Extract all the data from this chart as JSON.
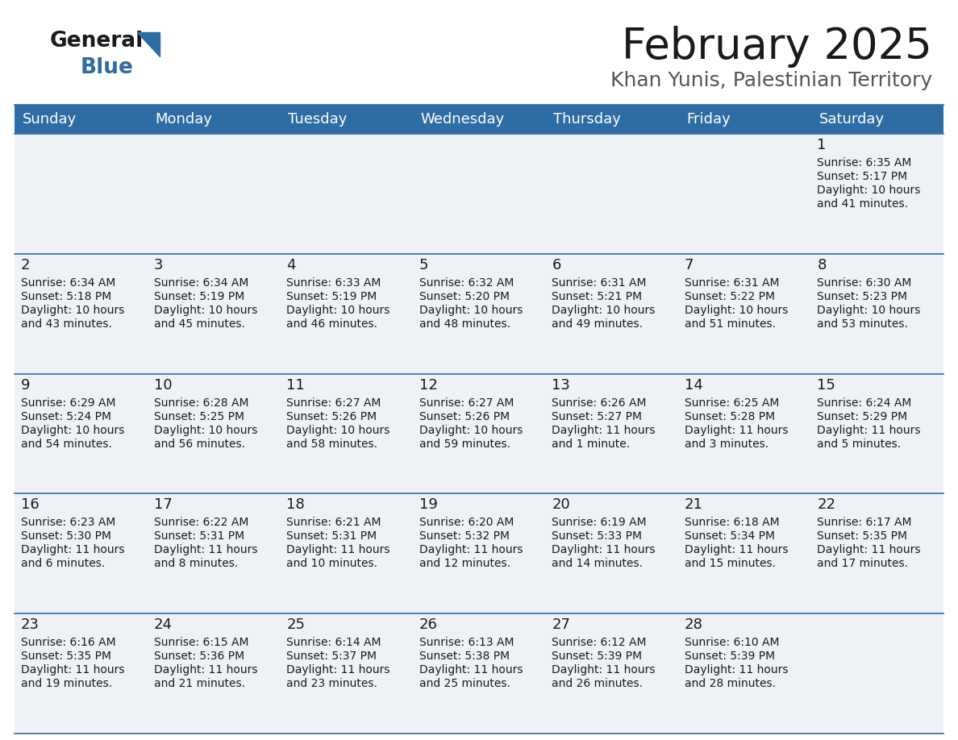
{
  "title": "February 2025",
  "subtitle": "Khan Yunis, Palestinian Territory",
  "header_color": "#2E6DA4",
  "header_text_color": "#FFFFFF",
  "cell_bg": "#EEF2F7",
  "border_color": "#2E6DA4",
  "text_color": "#1a1a1a",
  "day_headers": [
    "Sunday",
    "Monday",
    "Tuesday",
    "Wednesday",
    "Thursday",
    "Friday",
    "Saturday"
  ],
  "logo_color1": "#1a1a1a",
  "logo_color2": "#2E6DA4",
  "title_fontsize": 38,
  "subtitle_fontsize": 18,
  "header_fontsize": 13,
  "day_num_fontsize": 13,
  "cell_fontsize": 10,
  "calendar_data": [
    [
      {
        "day": "",
        "sunrise": "",
        "sunset": "",
        "daylight": ""
      },
      {
        "day": "",
        "sunrise": "",
        "sunset": "",
        "daylight": ""
      },
      {
        "day": "",
        "sunrise": "",
        "sunset": "",
        "daylight": ""
      },
      {
        "day": "",
        "sunrise": "",
        "sunset": "",
        "daylight": ""
      },
      {
        "day": "",
        "sunrise": "",
        "sunset": "",
        "daylight": ""
      },
      {
        "day": "",
        "sunrise": "",
        "sunset": "",
        "daylight": ""
      },
      {
        "day": "1",
        "sunrise": "6:35 AM",
        "sunset": "5:17 PM",
        "daylight": "10 hours\nand 41 minutes."
      }
    ],
    [
      {
        "day": "2",
        "sunrise": "6:34 AM",
        "sunset": "5:18 PM",
        "daylight": "10 hours\nand 43 minutes."
      },
      {
        "day": "3",
        "sunrise": "6:34 AM",
        "sunset": "5:19 PM",
        "daylight": "10 hours\nand 45 minutes."
      },
      {
        "day": "4",
        "sunrise": "6:33 AM",
        "sunset": "5:19 PM",
        "daylight": "10 hours\nand 46 minutes."
      },
      {
        "day": "5",
        "sunrise": "6:32 AM",
        "sunset": "5:20 PM",
        "daylight": "10 hours\nand 48 minutes."
      },
      {
        "day": "6",
        "sunrise": "6:31 AM",
        "sunset": "5:21 PM",
        "daylight": "10 hours\nand 49 minutes."
      },
      {
        "day": "7",
        "sunrise": "6:31 AM",
        "sunset": "5:22 PM",
        "daylight": "10 hours\nand 51 minutes."
      },
      {
        "day": "8",
        "sunrise": "6:30 AM",
        "sunset": "5:23 PM",
        "daylight": "10 hours\nand 53 minutes."
      }
    ],
    [
      {
        "day": "9",
        "sunrise": "6:29 AM",
        "sunset": "5:24 PM",
        "daylight": "10 hours\nand 54 minutes."
      },
      {
        "day": "10",
        "sunrise": "6:28 AM",
        "sunset": "5:25 PM",
        "daylight": "10 hours\nand 56 minutes."
      },
      {
        "day": "11",
        "sunrise": "6:27 AM",
        "sunset": "5:26 PM",
        "daylight": "10 hours\nand 58 minutes."
      },
      {
        "day": "12",
        "sunrise": "6:27 AM",
        "sunset": "5:26 PM",
        "daylight": "10 hours\nand 59 minutes."
      },
      {
        "day": "13",
        "sunrise": "6:26 AM",
        "sunset": "5:27 PM",
        "daylight": "11 hours\nand 1 minute."
      },
      {
        "day": "14",
        "sunrise": "6:25 AM",
        "sunset": "5:28 PM",
        "daylight": "11 hours\nand 3 minutes."
      },
      {
        "day": "15",
        "sunrise": "6:24 AM",
        "sunset": "5:29 PM",
        "daylight": "11 hours\nand 5 minutes."
      }
    ],
    [
      {
        "day": "16",
        "sunrise": "6:23 AM",
        "sunset": "5:30 PM",
        "daylight": "11 hours\nand 6 minutes."
      },
      {
        "day": "17",
        "sunrise": "6:22 AM",
        "sunset": "5:31 PM",
        "daylight": "11 hours\nand 8 minutes."
      },
      {
        "day": "18",
        "sunrise": "6:21 AM",
        "sunset": "5:31 PM",
        "daylight": "11 hours\nand 10 minutes."
      },
      {
        "day": "19",
        "sunrise": "6:20 AM",
        "sunset": "5:32 PM",
        "daylight": "11 hours\nand 12 minutes."
      },
      {
        "day": "20",
        "sunrise": "6:19 AM",
        "sunset": "5:33 PM",
        "daylight": "11 hours\nand 14 minutes."
      },
      {
        "day": "21",
        "sunrise": "6:18 AM",
        "sunset": "5:34 PM",
        "daylight": "11 hours\nand 15 minutes."
      },
      {
        "day": "22",
        "sunrise": "6:17 AM",
        "sunset": "5:35 PM",
        "daylight": "11 hours\nand 17 minutes."
      }
    ],
    [
      {
        "day": "23",
        "sunrise": "6:16 AM",
        "sunset": "5:35 PM",
        "daylight": "11 hours\nand 19 minutes."
      },
      {
        "day": "24",
        "sunrise": "6:15 AM",
        "sunset": "5:36 PM",
        "daylight": "11 hours\nand 21 minutes."
      },
      {
        "day": "25",
        "sunrise": "6:14 AM",
        "sunset": "5:37 PM",
        "daylight": "11 hours\nand 23 minutes."
      },
      {
        "day": "26",
        "sunrise": "6:13 AM",
        "sunset": "5:38 PM",
        "daylight": "11 hours\nand 25 minutes."
      },
      {
        "day": "27",
        "sunrise": "6:12 AM",
        "sunset": "5:39 PM",
        "daylight": "11 hours\nand 26 minutes."
      },
      {
        "day": "28",
        "sunrise": "6:10 AM",
        "sunset": "5:39 PM",
        "daylight": "11 hours\nand 28 minutes."
      },
      {
        "day": "",
        "sunrise": "",
        "sunset": "",
        "daylight": ""
      }
    ]
  ]
}
